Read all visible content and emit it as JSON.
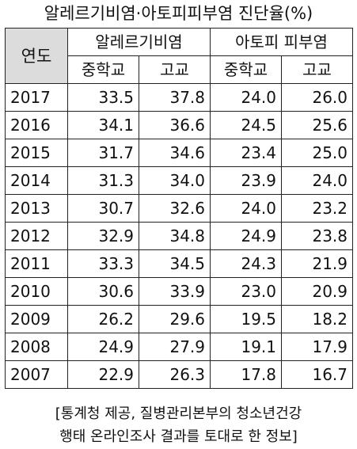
{
  "title": "알레르기비염·아토피피부염 진단율(%)",
  "table": {
    "year_header": "연도",
    "groups": [
      "알레르기비염",
      "아토피 피부염"
    ],
    "subheaders": [
      "중학교",
      "고교",
      "중학교",
      "고교"
    ],
    "rows": [
      {
        "year": "2017",
        "values": [
          "33.5",
          "37.8",
          "24.0",
          "26.0"
        ]
      },
      {
        "year": "2016",
        "values": [
          "34.1",
          "36.6",
          "24.5",
          "25.6"
        ]
      },
      {
        "year": "2015",
        "values": [
          "31.7",
          "34.6",
          "23.4",
          "25.0"
        ]
      },
      {
        "year": "2014",
        "values": [
          "31.3",
          "34.0",
          "23.9",
          "24.0"
        ]
      },
      {
        "year": "2013",
        "values": [
          "30.7",
          "32.6",
          "24.0",
          "23.2"
        ]
      },
      {
        "year": "2012",
        "values": [
          "32.9",
          "34.8",
          "24.9",
          "23.8"
        ]
      },
      {
        "year": "2011",
        "values": [
          "33.3",
          "34.5",
          "24.3",
          "21.9"
        ]
      },
      {
        "year": "2010",
        "values": [
          "30.6",
          "33.9",
          "23.0",
          "20.9"
        ]
      },
      {
        "year": "2009",
        "values": [
          "26.2",
          "29.6",
          "19.5",
          "18.2"
        ]
      },
      {
        "year": "2008",
        "values": [
          "24.9",
          "27.9",
          "19.1",
          "17.9"
        ]
      },
      {
        "year": "2007",
        "values": [
          "22.9",
          "26.3",
          "17.8",
          "16.7"
        ]
      }
    ]
  },
  "source": {
    "line1": "[통계청 제공, 질병관리본부의 청소년건강",
    "line2": "행태 온라인조사 결과를 토대로 한 정보]"
  }
}
